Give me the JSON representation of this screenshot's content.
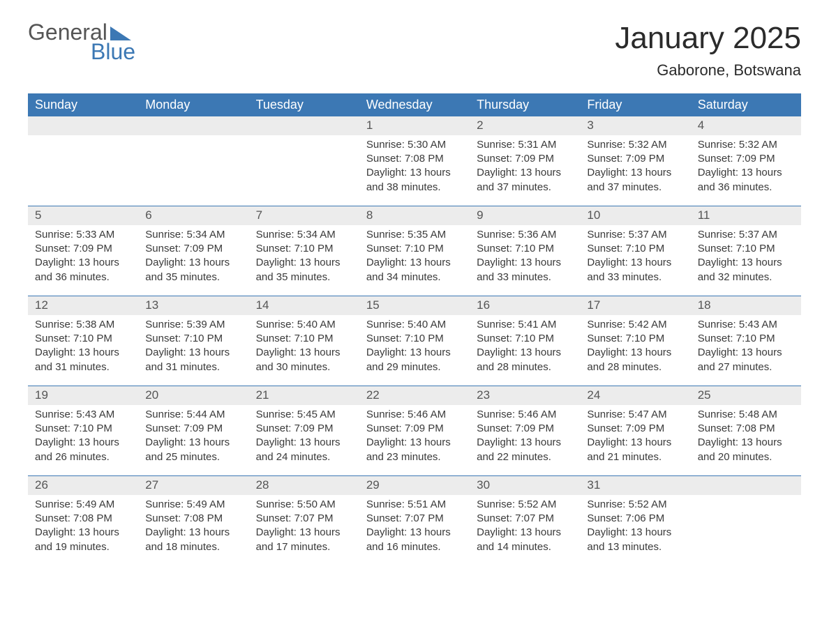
{
  "logo": {
    "text1": "General",
    "text2": "Blue"
  },
  "title": "January 2025",
  "location": "Gaborone, Botswana",
  "colors": {
    "header_bg": "#3c78b4",
    "header_text": "#ffffff",
    "daynum_bg": "#ececec",
    "text": "#3a3a3a",
    "logo_blue": "#3c78b4",
    "page_bg": "#ffffff",
    "week_border": "#3c78b4"
  },
  "typography": {
    "title_fontsize": 44,
    "location_fontsize": 22,
    "header_fontsize": 18,
    "daynum_fontsize": 17,
    "body_fontsize": 15
  },
  "layout": {
    "columns": 7,
    "rows": 5
  },
  "weekdays": [
    "Sunday",
    "Monday",
    "Tuesday",
    "Wednesday",
    "Thursday",
    "Friday",
    "Saturday"
  ],
  "weeks": [
    [
      {
        "num": "",
        "sunrise": "",
        "sunset": "",
        "daylight": ""
      },
      {
        "num": "",
        "sunrise": "",
        "sunset": "",
        "daylight": ""
      },
      {
        "num": "",
        "sunrise": "",
        "sunset": "",
        "daylight": ""
      },
      {
        "num": "1",
        "sunrise": "Sunrise: 5:30 AM",
        "sunset": "Sunset: 7:08 PM",
        "daylight": "Daylight: 13 hours and 38 minutes."
      },
      {
        "num": "2",
        "sunrise": "Sunrise: 5:31 AM",
        "sunset": "Sunset: 7:09 PM",
        "daylight": "Daylight: 13 hours and 37 minutes."
      },
      {
        "num": "3",
        "sunrise": "Sunrise: 5:32 AM",
        "sunset": "Sunset: 7:09 PM",
        "daylight": "Daylight: 13 hours and 37 minutes."
      },
      {
        "num": "4",
        "sunrise": "Sunrise: 5:32 AM",
        "sunset": "Sunset: 7:09 PM",
        "daylight": "Daylight: 13 hours and 36 minutes."
      }
    ],
    [
      {
        "num": "5",
        "sunrise": "Sunrise: 5:33 AM",
        "sunset": "Sunset: 7:09 PM",
        "daylight": "Daylight: 13 hours and 36 minutes."
      },
      {
        "num": "6",
        "sunrise": "Sunrise: 5:34 AM",
        "sunset": "Sunset: 7:09 PM",
        "daylight": "Daylight: 13 hours and 35 minutes."
      },
      {
        "num": "7",
        "sunrise": "Sunrise: 5:34 AM",
        "sunset": "Sunset: 7:10 PM",
        "daylight": "Daylight: 13 hours and 35 minutes."
      },
      {
        "num": "8",
        "sunrise": "Sunrise: 5:35 AM",
        "sunset": "Sunset: 7:10 PM",
        "daylight": "Daylight: 13 hours and 34 minutes."
      },
      {
        "num": "9",
        "sunrise": "Sunrise: 5:36 AM",
        "sunset": "Sunset: 7:10 PM",
        "daylight": "Daylight: 13 hours and 33 minutes."
      },
      {
        "num": "10",
        "sunrise": "Sunrise: 5:37 AM",
        "sunset": "Sunset: 7:10 PM",
        "daylight": "Daylight: 13 hours and 33 minutes."
      },
      {
        "num": "11",
        "sunrise": "Sunrise: 5:37 AM",
        "sunset": "Sunset: 7:10 PM",
        "daylight": "Daylight: 13 hours and 32 minutes."
      }
    ],
    [
      {
        "num": "12",
        "sunrise": "Sunrise: 5:38 AM",
        "sunset": "Sunset: 7:10 PM",
        "daylight": "Daylight: 13 hours and 31 minutes."
      },
      {
        "num": "13",
        "sunrise": "Sunrise: 5:39 AM",
        "sunset": "Sunset: 7:10 PM",
        "daylight": "Daylight: 13 hours and 31 minutes."
      },
      {
        "num": "14",
        "sunrise": "Sunrise: 5:40 AM",
        "sunset": "Sunset: 7:10 PM",
        "daylight": "Daylight: 13 hours and 30 minutes."
      },
      {
        "num": "15",
        "sunrise": "Sunrise: 5:40 AM",
        "sunset": "Sunset: 7:10 PM",
        "daylight": "Daylight: 13 hours and 29 minutes."
      },
      {
        "num": "16",
        "sunrise": "Sunrise: 5:41 AM",
        "sunset": "Sunset: 7:10 PM",
        "daylight": "Daylight: 13 hours and 28 minutes."
      },
      {
        "num": "17",
        "sunrise": "Sunrise: 5:42 AM",
        "sunset": "Sunset: 7:10 PM",
        "daylight": "Daylight: 13 hours and 28 minutes."
      },
      {
        "num": "18",
        "sunrise": "Sunrise: 5:43 AM",
        "sunset": "Sunset: 7:10 PM",
        "daylight": "Daylight: 13 hours and 27 minutes."
      }
    ],
    [
      {
        "num": "19",
        "sunrise": "Sunrise: 5:43 AM",
        "sunset": "Sunset: 7:10 PM",
        "daylight": "Daylight: 13 hours and 26 minutes."
      },
      {
        "num": "20",
        "sunrise": "Sunrise: 5:44 AM",
        "sunset": "Sunset: 7:09 PM",
        "daylight": "Daylight: 13 hours and 25 minutes."
      },
      {
        "num": "21",
        "sunrise": "Sunrise: 5:45 AM",
        "sunset": "Sunset: 7:09 PM",
        "daylight": "Daylight: 13 hours and 24 minutes."
      },
      {
        "num": "22",
        "sunrise": "Sunrise: 5:46 AM",
        "sunset": "Sunset: 7:09 PM",
        "daylight": "Daylight: 13 hours and 23 minutes."
      },
      {
        "num": "23",
        "sunrise": "Sunrise: 5:46 AM",
        "sunset": "Sunset: 7:09 PM",
        "daylight": "Daylight: 13 hours and 22 minutes."
      },
      {
        "num": "24",
        "sunrise": "Sunrise: 5:47 AM",
        "sunset": "Sunset: 7:09 PM",
        "daylight": "Daylight: 13 hours and 21 minutes."
      },
      {
        "num": "25",
        "sunrise": "Sunrise: 5:48 AM",
        "sunset": "Sunset: 7:08 PM",
        "daylight": "Daylight: 13 hours and 20 minutes."
      }
    ],
    [
      {
        "num": "26",
        "sunrise": "Sunrise: 5:49 AM",
        "sunset": "Sunset: 7:08 PM",
        "daylight": "Daylight: 13 hours and 19 minutes."
      },
      {
        "num": "27",
        "sunrise": "Sunrise: 5:49 AM",
        "sunset": "Sunset: 7:08 PM",
        "daylight": "Daylight: 13 hours and 18 minutes."
      },
      {
        "num": "28",
        "sunrise": "Sunrise: 5:50 AM",
        "sunset": "Sunset: 7:07 PM",
        "daylight": "Daylight: 13 hours and 17 minutes."
      },
      {
        "num": "29",
        "sunrise": "Sunrise: 5:51 AM",
        "sunset": "Sunset: 7:07 PM",
        "daylight": "Daylight: 13 hours and 16 minutes."
      },
      {
        "num": "30",
        "sunrise": "Sunrise: 5:52 AM",
        "sunset": "Sunset: 7:07 PM",
        "daylight": "Daylight: 13 hours and 14 minutes."
      },
      {
        "num": "31",
        "sunrise": "Sunrise: 5:52 AM",
        "sunset": "Sunset: 7:06 PM",
        "daylight": "Daylight: 13 hours and 13 minutes."
      },
      {
        "num": "",
        "sunrise": "",
        "sunset": "",
        "daylight": ""
      }
    ]
  ]
}
